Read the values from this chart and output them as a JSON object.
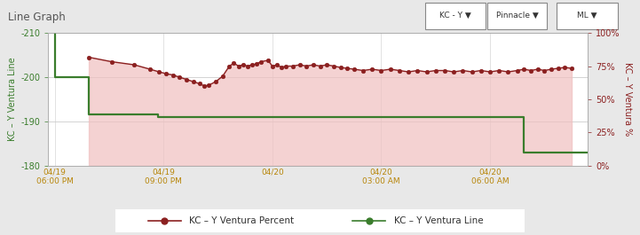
{
  "title": "Line Graph",
  "bg_color": "#e8e8e8",
  "plot_bg_color": "#ffffff",
  "left_ylabel": "KC – Y Ventura Line",
  "right_ylabel": "KC – Y Ventura %",
  "left_color": "#3a7d2c",
  "right_color": "#8b2020",
  "fill_color": "#f0c0c0",
  "fill_alpha": 0.7,
  "left_yticks": [
    -210,
    -200,
    -190,
    -180
  ],
  "left_ytick_labels": [
    "-210",
    "-200",
    "-190",
    "-180"
  ],
  "right_yticks": [
    0,
    25,
    50,
    75,
    100
  ],
  "right_ytick_labels": [
    "0%",
    "25%",
    "50%",
    "75%",
    "100%"
  ],
  "xtick_positions": [
    0,
    4.8,
    9.6,
    14.4,
    19.2
  ],
  "xtick_labels": [
    "04/19\n06:00 PM",
    "04/19\n09:00 PM",
    "04/20",
    "04/20\n03:00 AM",
    "04/20\n06:00 AM"
  ],
  "legend_label1": "KC – Y Ventura Percent",
  "legend_label2": "KC – Y Ventura Line",
  "percent_data": [
    [
      1.5,
      -204.5
    ],
    [
      2.5,
      -203.5
    ],
    [
      3.5,
      -202.8
    ],
    [
      4.2,
      -201.8
    ],
    [
      4.6,
      -201.2
    ],
    [
      4.9,
      -200.8
    ],
    [
      5.2,
      -200.5
    ],
    [
      5.5,
      -200.0
    ],
    [
      5.8,
      -199.5
    ],
    [
      6.1,
      -199.0
    ],
    [
      6.4,
      -198.5
    ],
    [
      6.6,
      -198.0
    ],
    [
      6.8,
      -198.2
    ],
    [
      7.1,
      -199.0
    ],
    [
      7.4,
      -200.2
    ],
    [
      7.7,
      -202.5
    ],
    [
      7.9,
      -203.2
    ],
    [
      8.1,
      -202.5
    ],
    [
      8.3,
      -202.8
    ],
    [
      8.5,
      -202.5
    ],
    [
      8.7,
      -202.8
    ],
    [
      8.9,
      -203.0
    ],
    [
      9.1,
      -203.5
    ],
    [
      9.4,
      -203.8
    ],
    [
      9.6,
      -202.5
    ],
    [
      9.8,
      -202.8
    ],
    [
      10.0,
      -202.2
    ],
    [
      10.2,
      -202.5
    ],
    [
      10.5,
      -202.5
    ],
    [
      10.8,
      -202.8
    ],
    [
      11.1,
      -202.5
    ],
    [
      11.4,
      -202.8
    ],
    [
      11.7,
      -202.5
    ],
    [
      12.0,
      -202.8
    ],
    [
      12.3,
      -202.5
    ],
    [
      12.6,
      -202.2
    ],
    [
      12.9,
      -202.0
    ],
    [
      13.2,
      -201.8
    ],
    [
      13.6,
      -201.5
    ],
    [
      14.0,
      -201.8
    ],
    [
      14.4,
      -201.5
    ],
    [
      14.8,
      -201.8
    ],
    [
      15.2,
      -201.5
    ],
    [
      15.6,
      -201.2
    ],
    [
      16.0,
      -201.5
    ],
    [
      16.4,
      -201.2
    ],
    [
      16.8,
      -201.5
    ],
    [
      17.2,
      -201.5
    ],
    [
      17.6,
      -201.2
    ],
    [
      18.0,
      -201.5
    ],
    [
      18.4,
      -201.2
    ],
    [
      18.8,
      -201.5
    ],
    [
      19.2,
      -201.2
    ],
    [
      19.6,
      -201.5
    ],
    [
      20.0,
      -201.2
    ],
    [
      20.4,
      -201.5
    ],
    [
      20.7,
      -201.8
    ],
    [
      21.0,
      -201.5
    ],
    [
      21.3,
      -201.8
    ],
    [
      21.6,
      -201.5
    ],
    [
      21.9,
      -201.8
    ],
    [
      22.2,
      -202.0
    ],
    [
      22.5,
      -202.2
    ],
    [
      22.8,
      -202.0
    ]
  ],
  "line_data_x": [
    0.0,
    0.0,
    1.5,
    1.5,
    4.55,
    4.55,
    20.7,
    20.7,
    23.5
  ],
  "line_data_y": [
    -211,
    -200,
    -200,
    -191.5,
    -191.5,
    -191,
    -191,
    -183,
    -183
  ],
  "fill_start_x": 1.5,
  "x_min": -0.3,
  "x_max": 23.5,
  "y_min": -180,
  "y_max": -210,
  "axis_label_color_left": "#3a7d2c",
  "axis_label_color_right": "#8b2020",
  "xlabel_color": "#b8860b",
  "header_bg": "#d4d4d4",
  "header_text_color": "#555555",
  "dropdown_labels": [
    "KC - Y ▼",
    "Pinnacle ▼",
    "ML ▼"
  ]
}
